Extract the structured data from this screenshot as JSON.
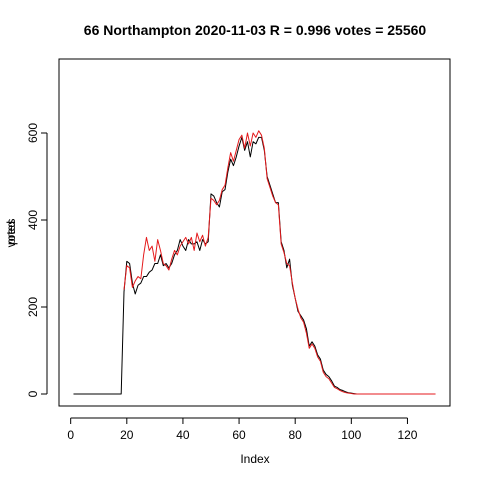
{
  "chart_data": {
    "type": "line",
    "title": "66 Northampton 2020-11-03 R = 0.996 votes = 25560",
    "xlabel": "Index",
    "ylabel": "votes",
    "ylabel_overprint": "pred",
    "xlim": [
      1,
      130
    ],
    "ylim": [
      0,
      700
    ],
    "xticks": [
      0,
      20,
      40,
      60,
      80,
      100,
      120
    ],
    "yticks": [
      0,
      200,
      400,
      600
    ],
    "colors": {
      "series_black": "#000000",
      "series_red": "#e41a1c"
    },
    "series": [
      {
        "color": "#000000",
        "values": [
          0,
          0,
          0,
          0,
          0,
          0,
          0,
          0,
          0,
          0,
          0,
          0,
          0,
          0,
          0,
          0,
          0,
          0,
          235,
          305,
          300,
          255,
          230,
          250,
          255,
          270,
          270,
          280,
          285,
          300,
          300,
          320,
          295,
          300,
          290,
          300,
          320,
          330,
          355,
          340,
          330,
          355,
          345,
          345,
          350,
          330,
          355,
          345,
          350,
          460,
          455,
          440,
          430,
          465,
          470,
          510,
          540,
          525,
          545,
          570,
          590,
          560,
          580,
          545,
          580,
          575,
          590,
          590,
          560,
          500,
          480,
          460,
          440,
          440,
          350,
          330,
          290,
          310,
          250,
          220,
          190,
          180,
          170,
          150,
          110,
          120,
          110,
          90,
          80,
          55,
          45,
          40,
          30,
          18,
          15,
          10,
          8,
          5,
          3,
          2,
          1,
          0,
          0,
          0,
          0,
          0,
          0,
          0,
          0,
          0,
          0,
          0,
          0,
          0,
          0,
          0,
          0,
          0,
          0,
          0,
          0,
          0,
          0,
          0,
          0,
          0,
          0,
          0,
          0,
          0
        ]
      },
      {
        "color": "#e41a1c",
        "values": [
          null,
          null,
          null,
          null,
          null,
          null,
          null,
          null,
          null,
          null,
          null,
          null,
          null,
          null,
          null,
          null,
          null,
          null,
          240,
          295,
          290,
          245,
          260,
          270,
          265,
          320,
          360,
          330,
          340,
          305,
          355,
          330,
          300,
          295,
          285,
          310,
          330,
          320,
          340,
          350,
          360,
          345,
          360,
          330,
          370,
          350,
          365,
          340,
          360,
          450,
          445,
          435,
          445,
          470,
          480,
          520,
          555,
          535,
          560,
          585,
          595,
          565,
          600,
          570,
          600,
          590,
          605,
          595,
          565,
          495,
          475,
          455,
          440,
          435,
          345,
          325,
          300,
          295,
          255,
          220,
          195,
          175,
          165,
          140,
          105,
          115,
          105,
          85,
          75,
          50,
          40,
          35,
          25,
          15,
          12,
          8,
          5,
          3,
          2,
          1,
          0,
          0,
          0,
          0,
          0,
          0,
          0,
          0,
          0,
          0,
          0,
          0,
          0,
          0,
          0,
          0,
          0,
          0,
          0,
          0,
          0,
          0,
          0,
          0,
          0,
          0,
          0,
          0,
          0,
          0
        ]
      }
    ]
  }
}
